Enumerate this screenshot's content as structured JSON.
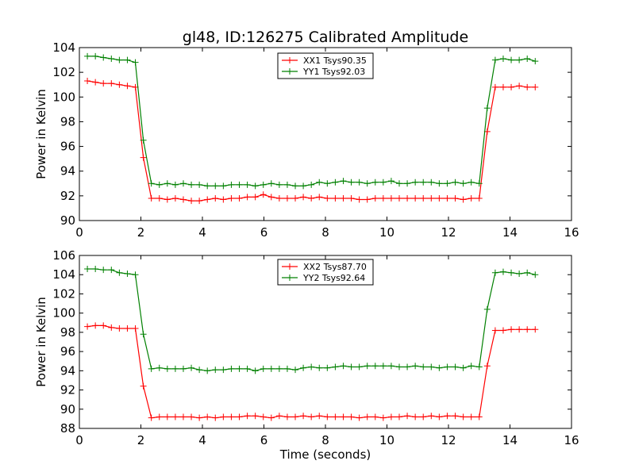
{
  "figure": {
    "title": "gl48, ID:126275 Calibrated Amplitude"
  },
  "chart_data": [
    {
      "type": "line",
      "title": "gl48, ID:126275 Calibrated Amplitude",
      "xlabel": "",
      "ylabel": "Power in Kelvin",
      "xlim": [
        0,
        16
      ],
      "ylim": [
        90,
        104
      ],
      "xticks": [
        0,
        2,
        4,
        6,
        8,
        10,
        12,
        14,
        16
      ],
      "yticks": [
        90,
        92,
        94,
        96,
        98,
        100,
        102,
        104
      ],
      "grid": false,
      "legend_position": "top-center",
      "x": [
        0.26,
        0.52,
        0.78,
        1.04,
        1.3,
        1.56,
        1.82,
        2.08,
        2.34,
        2.6,
        2.86,
        3.12,
        3.38,
        3.64,
        3.9,
        4.16,
        4.42,
        4.68,
        4.94,
        5.2,
        5.46,
        5.72,
        5.98,
        6.24,
        6.5,
        6.76,
        7.02,
        7.28,
        7.54,
        7.8,
        8.06,
        8.32,
        8.58,
        8.84,
        9.1,
        9.36,
        9.62,
        9.88,
        10.14,
        10.4,
        10.66,
        10.92,
        11.18,
        11.44,
        11.7,
        11.96,
        12.22,
        12.48,
        12.74,
        13.0,
        13.26,
        13.52,
        13.78,
        14.04,
        14.3,
        14.56,
        14.82
      ],
      "series": [
        {
          "name": "XX1 Tsys90.35",
          "color": "#ff0000",
          "values": [
            101.3,
            101.2,
            101.1,
            101.1,
            101.0,
            100.9,
            100.8,
            95.1,
            91.8,
            91.8,
            91.7,
            91.8,
            91.7,
            91.6,
            91.6,
            91.7,
            91.8,
            91.7,
            91.8,
            91.8,
            91.9,
            91.9,
            92.1,
            91.9,
            91.8,
            91.8,
            91.8,
            91.9,
            91.8,
            91.9,
            91.8,
            91.8,
            91.8,
            91.8,
            91.7,
            91.7,
            91.8,
            91.8,
            91.8,
            91.8,
            91.8,
            91.8,
            91.8,
            91.8,
            91.8,
            91.8,
            91.8,
            91.7,
            91.8,
            91.8,
            97.2,
            100.8,
            100.8,
            100.8,
            100.9,
            100.8,
            100.8
          ]
        },
        {
          "name": "YY1 Tsys92.03",
          "color": "#008000",
          "values": [
            103.3,
            103.3,
            103.2,
            103.1,
            103.0,
            103.0,
            102.8,
            96.5,
            93.0,
            92.9,
            93.0,
            92.9,
            93.0,
            92.9,
            92.9,
            92.8,
            92.8,
            92.8,
            92.9,
            92.9,
            92.9,
            92.8,
            92.9,
            93.0,
            92.9,
            92.9,
            92.8,
            92.8,
            92.9,
            93.1,
            93.0,
            93.1,
            93.2,
            93.1,
            93.1,
            93.0,
            93.1,
            93.1,
            93.2,
            93.0,
            93.0,
            93.1,
            93.1,
            93.1,
            93.0,
            93.0,
            93.1,
            93.0,
            93.1,
            93.0,
            99.1,
            103.0,
            103.1,
            103.0,
            103.0,
            103.1,
            102.9
          ]
        }
      ]
    },
    {
      "type": "line",
      "title": "",
      "xlabel": "Time (seconds)",
      "ylabel": "Power in Kelvin",
      "xlim": [
        0,
        16
      ],
      "ylim": [
        88,
        106
      ],
      "xticks": [
        0,
        2,
        4,
        6,
        8,
        10,
        12,
        14,
        16
      ],
      "yticks": [
        88,
        90,
        92,
        94,
        96,
        98,
        100,
        102,
        104,
        106
      ],
      "grid": false,
      "legend_position": "top-center",
      "x": [
        0.26,
        0.52,
        0.78,
        1.04,
        1.3,
        1.56,
        1.82,
        2.08,
        2.34,
        2.6,
        2.86,
        3.12,
        3.38,
        3.64,
        3.9,
        4.16,
        4.42,
        4.68,
        4.94,
        5.2,
        5.46,
        5.72,
        5.98,
        6.24,
        6.5,
        6.76,
        7.02,
        7.28,
        7.54,
        7.8,
        8.06,
        8.32,
        8.58,
        8.84,
        9.1,
        9.36,
        9.62,
        9.88,
        10.14,
        10.4,
        10.66,
        10.92,
        11.18,
        11.44,
        11.7,
        11.96,
        12.22,
        12.48,
        12.74,
        13.0,
        13.26,
        13.52,
        13.78,
        14.04,
        14.3,
        14.56,
        14.82
      ],
      "series": [
        {
          "name": "XX2 Tsys87.70",
          "color": "#ff0000",
          "values": [
            98.6,
            98.7,
            98.7,
            98.5,
            98.4,
            98.4,
            98.4,
            92.4,
            89.1,
            89.2,
            89.2,
            89.2,
            89.2,
            89.2,
            89.1,
            89.2,
            89.1,
            89.2,
            89.2,
            89.2,
            89.3,
            89.3,
            89.2,
            89.1,
            89.3,
            89.2,
            89.2,
            89.3,
            89.2,
            89.3,
            89.2,
            89.2,
            89.2,
            89.2,
            89.1,
            89.2,
            89.2,
            89.1,
            89.2,
            89.2,
            89.3,
            89.2,
            89.2,
            89.3,
            89.2,
            89.3,
            89.3,
            89.2,
            89.2,
            89.2,
            94.5,
            98.2,
            98.2,
            98.3,
            98.3,
            98.3,
            98.3
          ]
        },
        {
          "name": "YY2 Tsys92.64",
          "color": "#008000",
          "values": [
            104.6,
            104.6,
            104.5,
            104.5,
            104.2,
            104.1,
            104.0,
            97.8,
            94.2,
            94.3,
            94.2,
            94.2,
            94.2,
            94.3,
            94.1,
            94.0,
            94.1,
            94.1,
            94.2,
            94.2,
            94.2,
            94.0,
            94.2,
            94.2,
            94.2,
            94.2,
            94.1,
            94.3,
            94.4,
            94.3,
            94.3,
            94.4,
            94.5,
            94.4,
            94.4,
            94.5,
            94.5,
            94.5,
            94.5,
            94.4,
            94.4,
            94.5,
            94.4,
            94.4,
            94.3,
            94.4,
            94.4,
            94.3,
            94.5,
            94.4,
            100.4,
            104.2,
            104.3,
            104.2,
            104.1,
            104.2,
            104.0
          ]
        }
      ]
    }
  ]
}
